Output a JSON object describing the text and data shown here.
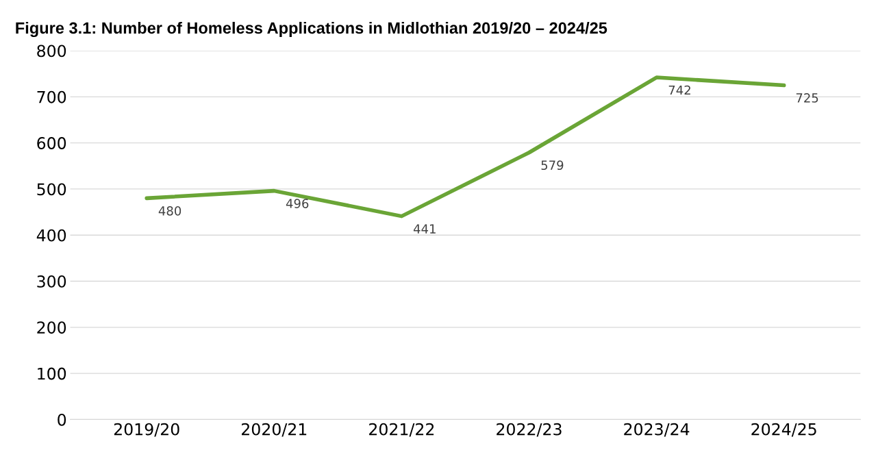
{
  "chart_data": {
    "type": "line",
    "title": "Figure 3.1: Number of Homeless Applications in Midlothian 2019/20 – 2024/25",
    "categories": [
      "2019/20",
      "2020/21",
      "2021/22",
      "2022/23",
      "2023/24",
      "2024/25"
    ],
    "series": [
      {
        "color": "#6aa536",
        "values": [
          480,
          496,
          441,
          579,
          742,
          725
        ]
      }
    ],
    "ylim": [
      0,
      800
    ],
    "yticks": [
      0,
      100,
      200,
      300,
      400,
      500,
      600,
      700,
      800
    ],
    "grid": "y",
    "data_labels": true,
    "marker": "none",
    "line_style": "solid"
  }
}
